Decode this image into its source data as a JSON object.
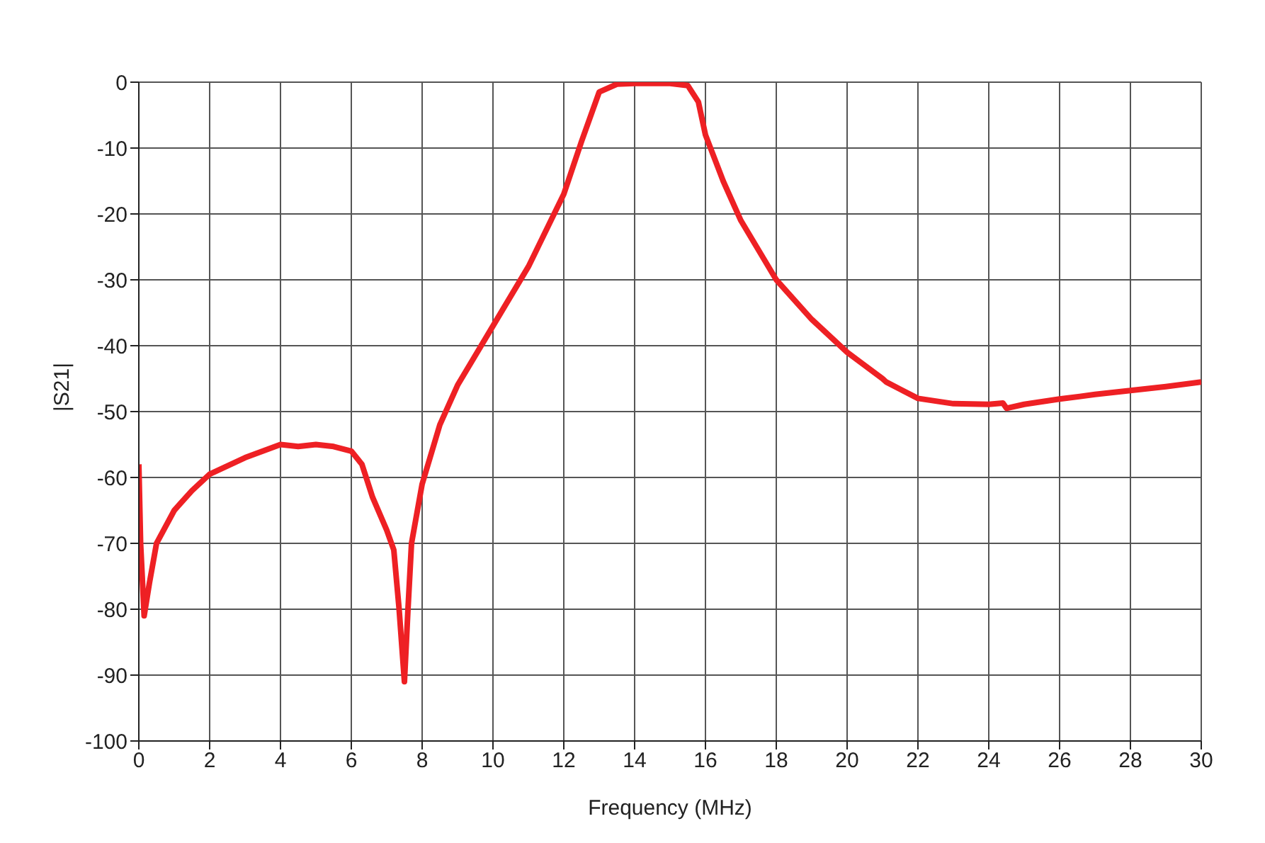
{
  "chart_data": {
    "type": "line",
    "xlabel": "Frequency (MHz)",
    "ylabel": "|S21|",
    "series": [
      {
        "color": "#ee2024",
        "x": [
          0,
          0.05,
          0.15,
          0.3,
          0.5,
          1,
          1.5,
          2,
          3,
          4,
          4.5,
          5,
          5.5,
          6,
          6.3,
          6.6,
          7,
          7.2,
          7.35,
          7.5,
          7.6,
          7.7,
          8,
          8.5,
          9,
          10,
          11,
          12,
          12.5,
          13,
          13.5,
          14,
          15,
          15.5,
          15.8,
          16,
          16.5,
          17,
          18,
          19,
          20,
          21,
          21.1,
          22,
          23,
          24,
          24.4,
          24.5,
          25,
          26,
          27,
          28,
          29,
          30
        ],
        "values": [
          -58,
          -70,
          -81,
          -76,
          -70,
          -65,
          -62,
          -59.5,
          -57,
          -55,
          -55.3,
          -55,
          -55.3,
          -56,
          -58,
          -63,
          -68,
          -71,
          -80,
          -91,
          -80,
          -70,
          -61,
          -52,
          -46,
          -37,
          -28,
          -17,
          -9,
          -1.5,
          -0.3,
          -0.2,
          -0.2,
          -0.5,
          -3,
          -8,
          -15,
          -21,
          -30,
          -36,
          -41,
          -45,
          -45.5,
          -48,
          -48.8,
          -48.9,
          -48.7,
          -49.5,
          -48.9,
          -48.1,
          -47.4,
          -46.8,
          -46.2,
          -45.5
        ]
      }
    ],
    "xlim": [
      0,
      30
    ],
    "xticks": [
      0,
      2,
      4,
      6,
      8,
      10,
      12,
      14,
      16,
      18,
      20,
      22,
      24,
      26,
      28,
      30
    ],
    "ylim": [
      -100,
      0
    ],
    "yticks": [
      -100,
      -90,
      -80,
      -70,
      -60,
      -50,
      -40,
      -30,
      -20,
      -10,
      0
    ],
    "grid": true,
    "marker": "none",
    "line_style": "solid",
    "legend": false
  }
}
